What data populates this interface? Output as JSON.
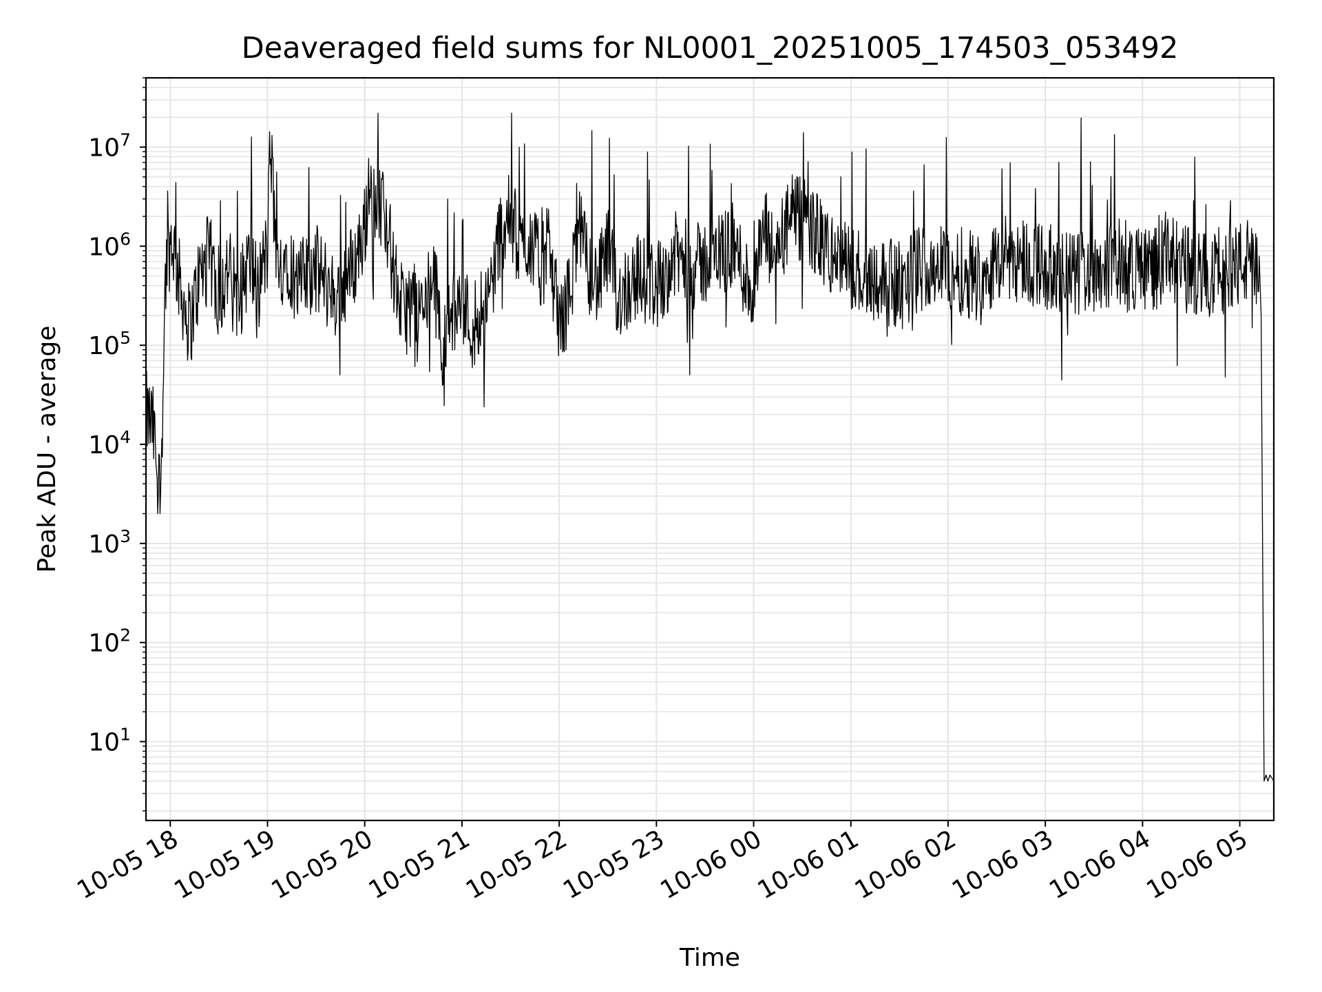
{
  "chart_data": {
    "type": "line",
    "title": "Deaveraged field sums for NL0001_20251005_174503_053492",
    "xlabel": "Time",
    "ylabel": "Peak ADU - average",
    "yscale": "log",
    "ylim": [
      1.6,
      50000000
    ],
    "xlim_hours_from_2025_10_05_17_00": [
      0.75,
      12.35
    ],
    "grid": true,
    "line_color": "#000000",
    "grid_color": "#e5e5e5",
    "x_ticks": [
      {
        "hour": 1,
        "label": "10-05 18"
      },
      {
        "hour": 2,
        "label": "10-05 19"
      },
      {
        "hour": 3,
        "label": "10-05 20"
      },
      {
        "hour": 4,
        "label": "10-05 21"
      },
      {
        "hour": 5,
        "label": "10-05 22"
      },
      {
        "hour": 6,
        "label": "10-05 23"
      },
      {
        "hour": 7,
        "label": "10-06 00"
      },
      {
        "hour": 8,
        "label": "10-06 01"
      },
      {
        "hour": 9,
        "label": "10-06 02"
      },
      {
        "hour": 10,
        "label": "10-06 03"
      },
      {
        "hour": 11,
        "label": "10-06 04"
      },
      {
        "hour": 12,
        "label": "10-06 05"
      }
    ],
    "y_ticks": [
      {
        "exp": 1,
        "base": "10",
        "sup": "1"
      },
      {
        "exp": 2,
        "base": "10",
        "sup": "2"
      },
      {
        "exp": 3,
        "base": "10",
        "sup": "3"
      },
      {
        "exp": 4,
        "base": "10",
        "sup": "4"
      },
      {
        "exp": 5,
        "base": "10",
        "sup": "5"
      },
      {
        "exp": 6,
        "base": "10",
        "sup": "6"
      },
      {
        "exp": 7,
        "base": "10",
        "sup": "7"
      }
    ],
    "series": [
      {
        "name": "Peak ADU - average",
        "hours": [
          0.75,
          0.82,
          0.9,
          0.95,
          0.98,
          1.02,
          1.1,
          1.2,
          1.3,
          1.4,
          1.5,
          1.6,
          1.7,
          1.8,
          1.9,
          2.0,
          2.03,
          2.1,
          2.2,
          2.3,
          2.5,
          2.7,
          2.9,
          3.0,
          3.05,
          3.1,
          3.2,
          3.3,
          3.4,
          3.5,
          3.6,
          3.7,
          3.8,
          3.9,
          4.0,
          4.1,
          4.2,
          4.3,
          4.4,
          4.5,
          4.6,
          4.7,
          4.8,
          4.9,
          5.0,
          5.1,
          5.2,
          5.3,
          5.4,
          5.5,
          5.6,
          5.8,
          6.0,
          6.2,
          6.4,
          6.6,
          6.8,
          7.0,
          7.1,
          7.2,
          7.4,
          7.6,
          7.8,
          8.0,
          8.2,
          8.5,
          8.8,
          9.0,
          9.3,
          9.6,
          9.9,
          10.2,
          10.5,
          10.8,
          11.0,
          11.3,
          11.6,
          11.9,
          12.1,
          12.18,
          12.22,
          12.25,
          12.35
        ],
        "values": [
          20000,
          15000,
          3000,
          500000,
          900000,
          1200000,
          400000,
          150000,
          500000,
          800000,
          300000,
          600000,
          250000,
          700000,
          400000,
          900000,
          12000000,
          500000,
          900000,
          400000,
          600000,
          300000,
          700000,
          1500000,
          6000000,
          2000000,
          3000000,
          500000,
          200000,
          300000,
          200000,
          600000,
          100000,
          200000,
          300000,
          150000,
          250000,
          400000,
          1500000,
          2000000,
          900000,
          1200000,
          600000,
          1000000,
          150000,
          300000,
          1500000,
          600000,
          400000,
          900000,
          300000,
          500000,
          400000,
          800000,
          600000,
          800000,
          1000000,
          300000,
          1500000,
          800000,
          2000000,
          1500000,
          800000,
          600000,
          500000,
          400000,
          700000,
          600000,
          500000,
          800000,
          700000,
          500000,
          600000,
          700000,
          600000,
          700000,
          500000,
          600000,
          700000,
          500000,
          200000,
          4,
          4
        ]
      }
    ]
  }
}
